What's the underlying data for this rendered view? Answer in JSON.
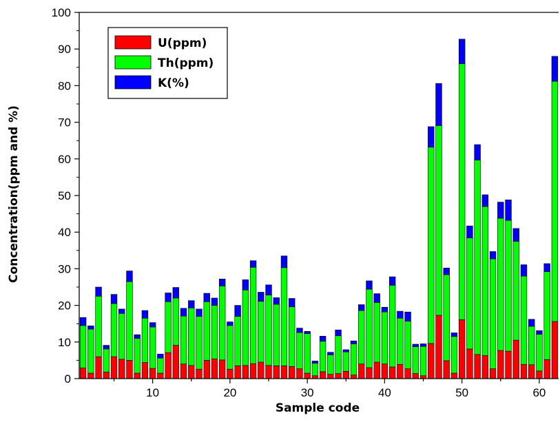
{
  "chart_data": {
    "type": "bar",
    "stacked": true,
    "xlabel": "Sample code",
    "ylabel": "Concentration(ppm and %)",
    "ylim": [
      0,
      100
    ],
    "xlim": [
      0.5,
      62.5
    ],
    "yticks": [
      0,
      10,
      20,
      30,
      40,
      50,
      60,
      70,
      80,
      90,
      100
    ],
    "xticks": [
      10,
      20,
      30,
      40,
      50,
      60
    ],
    "legend_position": "top-left",
    "series": [
      {
        "name": "U(ppm)",
        "color": "#ff0000",
        "values": [
          2.9,
          1.5,
          6.0,
          1.8,
          6.0,
          5.3,
          5.0,
          1.5,
          4.4,
          2.8,
          1.5,
          7.1,
          9.1,
          4.0,
          3.6,
          2.6,
          5.0,
          5.4,
          5.1,
          2.6,
          3.5,
          3.6,
          4.1,
          4.5,
          3.6,
          3.5,
          3.5,
          3.3,
          2.7,
          1.5,
          0.8,
          1.9,
          1.2,
          1.4,
          2.0,
          1.0,
          4.0,
          3.0,
          4.5,
          4.0,
          3.2,
          3.9,
          2.7,
          1.4,
          0.8,
          9.6,
          17.3,
          4.9,
          1.5,
          16.1,
          8.1,
          6.6,
          6.3,
          2.7,
          7.7,
          7.5,
          10.5,
          3.9,
          3.8,
          2.1,
          5.2,
          15.6
        ]
      },
      {
        "name": "Th(ppm)",
        "color": "#00ff00",
        "values": [
          11.6,
          12.0,
          16.5,
          6.3,
          14.5,
          12.5,
          21.5,
          9.5,
          12.1,
          11.3,
          4.1,
          13.9,
          12.9,
          13.1,
          15.7,
          14.4,
          16.0,
          14.6,
          20.2,
          11.9,
          13.5,
          20.6,
          26.3,
          16.6,
          19.2,
          16.8,
          26.8,
          16.3,
          9.9,
          10.8,
          3.4,
          8.3,
          5.3,
          10.3,
          5.3,
          8.5,
          14.6,
          21.4,
          16.3,
          14.2,
          22.3,
          12.6,
          13.0,
          7.3,
          8.0,
          53.6,
          51.8,
          23.5,
          10.0,
          69.9,
          30.3,
          53.1,
          40.7,
          30.0,
          36.1,
          35.7,
          27.0,
          24.1,
          10.5,
          10.0,
          24.0,
          65.6
        ]
      },
      {
        "name": "K(%)",
        "color": "#0000ff",
        "values": [
          2.2,
          0.9,
          2.5,
          1.0,
          2.5,
          1.2,
          2.9,
          1.0,
          2.1,
          1.2,
          1.1,
          2.4,
          2.9,
          2.1,
          2.0,
          2.0,
          2.3,
          2.0,
          1.9,
          1.0,
          3.0,
          2.8,
          1.8,
          2.5,
          2.8,
          1.8,
          3.2,
          2.3,
          1.2,
          0.6,
          0.6,
          1.4,
          0.7,
          1.6,
          0.6,
          0.8,
          1.6,
          2.3,
          2.4,
          1.3,
          2.3,
          1.9,
          2.5,
          0.7,
          0.7,
          5.6,
          11.5,
          1.8,
          1.0,
          6.7,
          3.3,
          4.2,
          3.2,
          2.0,
          4.4,
          5.6,
          3.5,
          3.1,
          1.9,
          1.0,
          2.2,
          6.8
        ]
      }
    ]
  }
}
